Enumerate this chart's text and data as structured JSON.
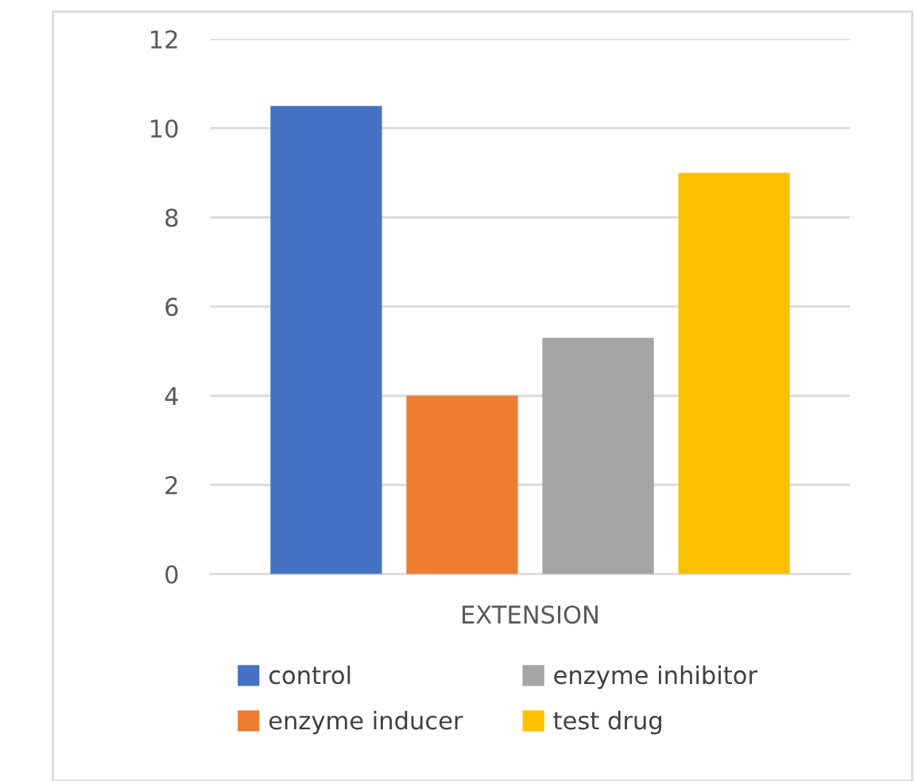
{
  "chart_data": {
    "type": "bar",
    "categories": [
      "EXTENSION"
    ],
    "series": [
      {
        "name": "control",
        "color": "#4472c4",
        "values": [
          10.5
        ]
      },
      {
        "name": "enzyme inducer",
        "color": "#ed7d31",
        "values": [
          4.0
        ]
      },
      {
        "name": "enzyme inhibitor",
        "color": "#a5a5a5",
        "values": [
          5.3
        ]
      },
      {
        "name": "test drug",
        "color": "#ffc000",
        "values": [
          9.0
        ]
      }
    ],
    "ylim": [
      0,
      12
    ],
    "yticks": [
      0,
      2,
      4,
      6,
      8,
      10,
      12
    ],
    "grid": "y",
    "legend": "bottom"
  }
}
